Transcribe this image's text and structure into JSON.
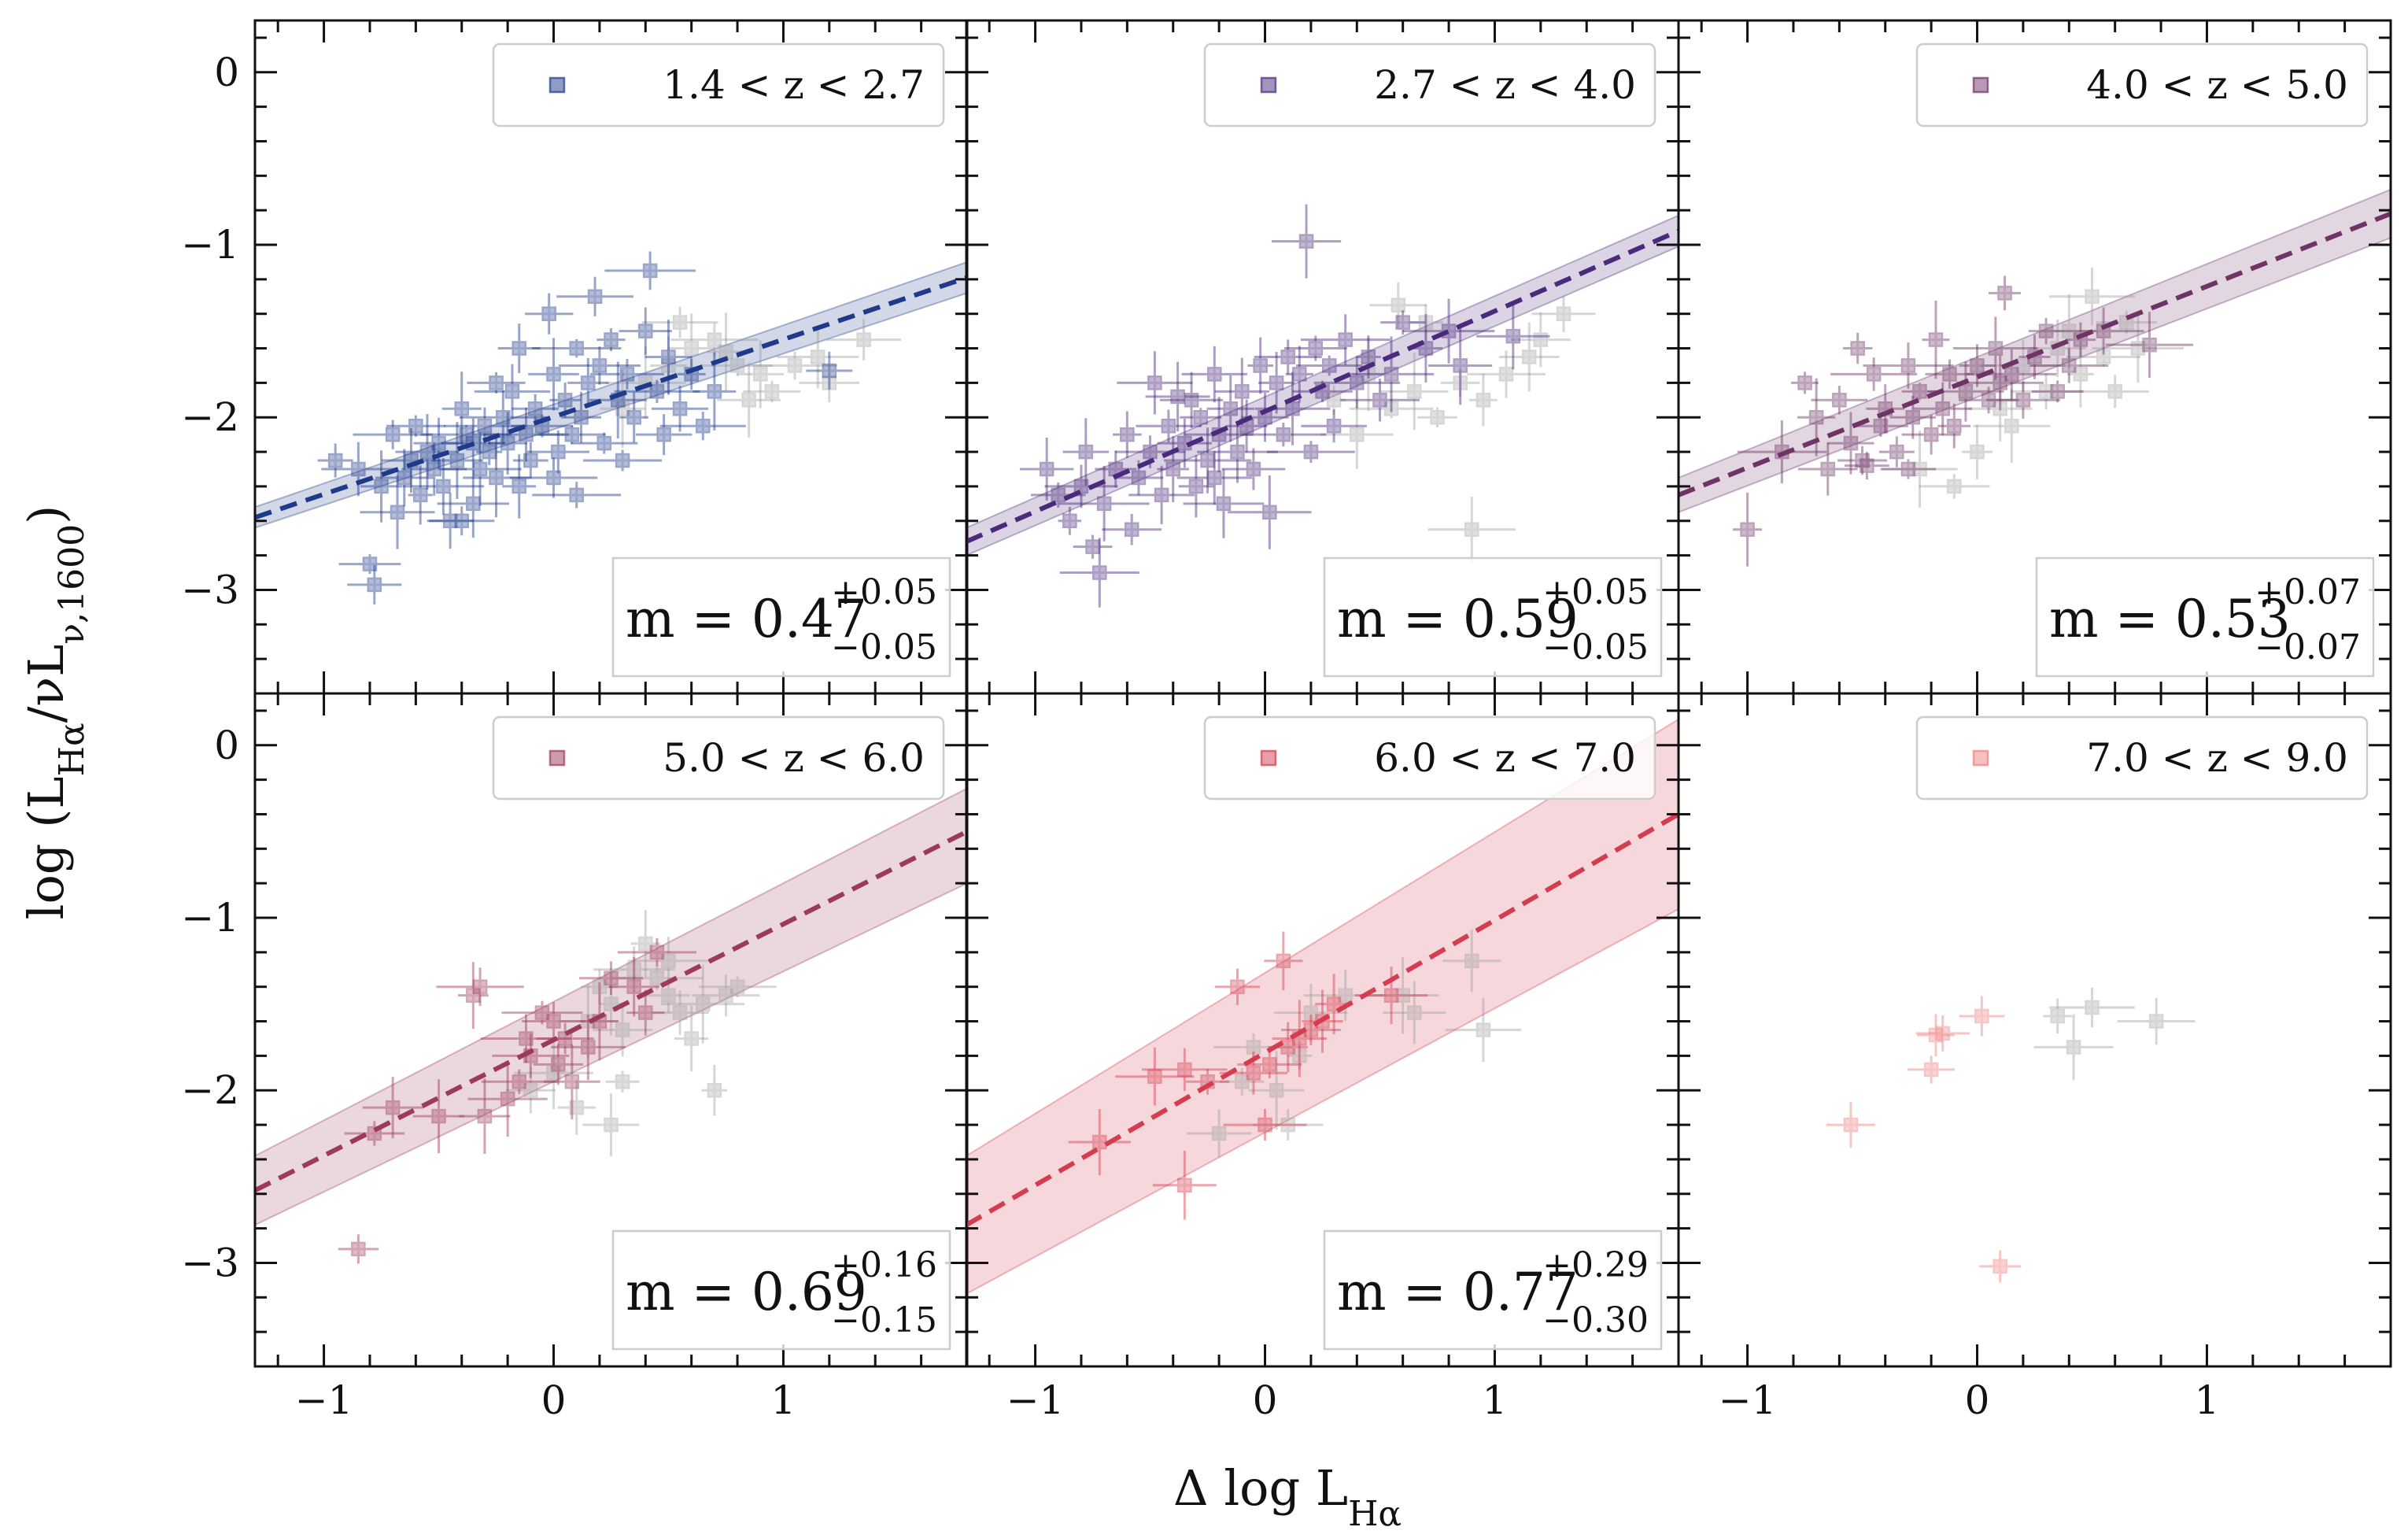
{
  "figure": {
    "xlabel": "Δ log L_Hα",
    "ylabel": "log (L_Hα/νL_ν,1600)"
  },
  "chart_data": [
    {
      "type": "scatter",
      "panel": "1.4 < z < 2.7",
      "color": "#1f3a8a",
      "legend": "1.4 < z < 2.7",
      "slope": "0.47",
      "slope_up": "+0.05",
      "slope_dn": "−0.05",
      "xlim": [
        -1.3,
        1.8
      ],
      "ylim": [
        -3.6,
        0.3
      ],
      "fit": {
        "x": [
          -1.3,
          1.8
        ],
        "y": [
          -2.58,
          -1.19
        ]
      },
      "band": {
        "x": [
          -1.3,
          1.8
        ],
        "upper": [
          -2.52,
          -1.1
        ],
        "lower": [
          -2.64,
          -1.28
        ]
      },
      "points": [
        [
          -0.95,
          -2.25
        ],
        [
          -0.85,
          -2.3
        ],
        [
          -0.8,
          -2.85
        ],
        [
          -0.78,
          -2.97
        ],
        [
          -0.75,
          -2.4
        ],
        [
          -0.7,
          -2.1
        ],
        [
          -0.68,
          -2.55
        ],
        [
          -0.65,
          -2.35
        ],
        [
          -0.62,
          -2.25
        ],
        [
          -0.6,
          -2.05
        ],
        [
          -0.58,
          -2.45
        ],
        [
          -0.55,
          -2.2
        ],
        [
          -0.52,
          -2.3
        ],
        [
          -0.5,
          -2.15
        ],
        [
          -0.48,
          -2.4
        ],
        [
          -0.45,
          -2.6
        ],
        [
          -0.42,
          -2.25
        ],
        [
          -0.4,
          -1.95
        ],
        [
          -0.38,
          -2.1
        ],
        [
          -0.35,
          -2.5
        ],
        [
          -0.32,
          -2.3
        ],
        [
          -0.3,
          -2.05
        ],
        [
          -0.28,
          -2.2
        ],
        [
          -0.25,
          -2.35
        ],
        [
          -0.22,
          -2.0
        ],
        [
          -0.2,
          -2.15
        ],
        [
          -0.18,
          -1.85
        ],
        [
          -0.15,
          -2.4
        ],
        [
          -0.12,
          -2.1
        ],
        [
          -0.1,
          -2.25
        ],
        [
          -0.08,
          -1.95
        ],
        [
          -0.05,
          -2.05
        ],
        [
          -0.02,
          -1.4
        ],
        [
          0.0,
          -1.75
        ],
        [
          0.02,
          -2.2
        ],
        [
          0.05,
          -1.9
        ],
        [
          0.08,
          -2.1
        ],
        [
          0.1,
          -1.6
        ],
        [
          0.12,
          -2.0
        ],
        [
          0.15,
          -1.8
        ],
        [
          0.18,
          -1.3
        ],
        [
          0.2,
          -1.7
        ],
        [
          0.22,
          -2.15
        ],
        [
          0.25,
          -1.55
        ],
        [
          0.28,
          -1.9
        ],
        [
          0.3,
          -2.25
        ],
        [
          0.32,
          -1.75
        ],
        [
          0.35,
          -2.0
        ],
        [
          0.4,
          -1.5
        ],
        [
          0.42,
          -1.15
        ],
        [
          0.45,
          -1.85
        ],
        [
          0.48,
          -2.1
        ],
        [
          0.5,
          -1.65
        ],
        [
          0.55,
          -1.95
        ],
        [
          0.6,
          -1.75
        ],
        [
          0.65,
          -2.05
        ],
        [
          0.7,
          -1.85
        ],
        [
          1.2,
          -1.73
        ],
        [
          -0.4,
          -2.6
        ],
        [
          -0.35,
          -2.15
        ],
        [
          -0.25,
          -1.8
        ],
        [
          -0.15,
          -1.6
        ],
        [
          0.0,
          -2.35
        ],
        [
          0.1,
          -2.45
        ]
      ],
      "grey_points": [
        [
          0.3,
          -1.95
        ],
        [
          0.4,
          -1.8
        ],
        [
          0.5,
          -1.7
        ],
        [
          0.6,
          -1.6
        ],
        [
          0.7,
          -1.55
        ],
        [
          0.75,
          -1.62
        ],
        [
          0.8,
          -1.7
        ],
        [
          0.85,
          -1.9
        ],
        [
          0.95,
          -1.85
        ],
        [
          1.05,
          -1.7
        ],
        [
          1.15,
          -1.65
        ],
        [
          1.2,
          -1.8
        ],
        [
          1.35,
          -1.55
        ],
        [
          0.9,
          -1.75
        ],
        [
          0.55,
          -1.45
        ]
      ]
    },
    {
      "type": "scatter",
      "panel": "2.7 < z < 4.0",
      "color": "#4b2a7b",
      "legend": "2.7 < z < 4.0",
      "slope": "0.59",
      "slope_up": "+0.05",
      "slope_dn": "−0.05",
      "xlim": [
        -1.3,
        1.8
      ],
      "ylim": [
        -3.6,
        0.3
      ],
      "fit": {
        "x": [
          -1.3,
          1.8
        ],
        "y": [
          -2.72,
          -0.92
        ]
      },
      "band": {
        "x": [
          -1.3,
          1.8
        ],
        "upper": [
          -2.64,
          -0.83
        ],
        "lower": [
          -2.8,
          -1.01
        ]
      },
      "points": [
        [
          -0.95,
          -2.3
        ],
        [
          -0.9,
          -2.45
        ],
        [
          -0.85,
          -2.6
        ],
        [
          -0.8,
          -2.4
        ],
        [
          -0.78,
          -2.2
        ],
        [
          -0.75,
          -2.75
        ],
        [
          -0.72,
          -2.9
        ],
        [
          -0.7,
          -2.5
        ],
        [
          -0.65,
          -2.3
        ],
        [
          -0.6,
          -2.1
        ],
        [
          -0.58,
          -2.65
        ],
        [
          -0.55,
          -2.35
        ],
        [
          -0.5,
          -2.2
        ],
        [
          -0.48,
          -1.8
        ],
        [
          -0.45,
          -2.45
        ],
        [
          -0.42,
          -2.05
        ],
        [
          -0.4,
          -2.3
        ],
        [
          -0.35,
          -2.15
        ],
        [
          -0.32,
          -1.9
        ],
        [
          -0.3,
          -2.4
        ],
        [
          -0.28,
          -2.0
        ],
        [
          -0.25,
          -2.25
        ],
        [
          -0.22,
          -1.75
        ],
        [
          -0.2,
          -2.1
        ],
        [
          -0.18,
          -2.5
        ],
        [
          -0.15,
          -1.95
        ],
        [
          -0.12,
          -2.2
        ],
        [
          -0.1,
          -1.85
        ],
        [
          -0.08,
          -2.05
        ],
        [
          -0.05,
          -2.3
        ],
        [
          -0.02,
          -1.7
        ],
        [
          0.0,
          -2.0
        ],
        [
          0.02,
          -2.55
        ],
        [
          0.05,
          -1.8
        ],
        [
          0.08,
          -2.1
        ],
        [
          0.1,
          -1.65
        ],
        [
          0.12,
          -1.95
        ],
        [
          0.15,
          -1.75
        ],
        [
          0.18,
          -0.98
        ],
        [
          0.2,
          -2.2
        ],
        [
          0.22,
          -1.6
        ],
        [
          0.25,
          -1.85
        ],
        [
          0.28,
          -1.7
        ],
        [
          0.3,
          -2.05
        ],
        [
          0.35,
          -1.55
        ],
        [
          0.4,
          -1.8
        ],
        [
          0.45,
          -1.65
        ],
        [
          0.5,
          -1.9
        ],
        [
          0.55,
          -1.75
        ],
        [
          0.6,
          -1.45
        ],
        [
          0.7,
          -1.6
        ],
        [
          0.8,
          -1.5
        ],
        [
          0.85,
          -1.7
        ],
        [
          1.08,
          -1.53
        ],
        [
          -0.38,
          -1.88
        ],
        [
          -0.22,
          -2.35
        ]
      ],
      "grey_points": [
        [
          0.3,
          -1.9
        ],
        [
          0.45,
          -1.75
        ],
        [
          0.55,
          -1.95
        ],
        [
          0.65,
          -1.85
        ],
        [
          0.75,
          -2.0
        ],
        [
          0.85,
          -1.8
        ],
        [
          0.95,
          -1.9
        ],
        [
          1.05,
          -1.75
        ],
        [
          1.15,
          -1.65
        ],
        [
          0.58,
          -1.35
        ],
        [
          0.7,
          -1.45
        ],
        [
          0.9,
          -2.65
        ],
        [
          1.2,
          -1.55
        ],
        [
          1.3,
          -1.4
        ],
        [
          0.4,
          -2.1
        ]
      ]
    },
    {
      "type": "scatter",
      "panel": "4.0 < z < 5.0",
      "color": "#6e3466",
      "legend": "4.0 < z < 5.0",
      "slope": "0.53",
      "slope_up": "+0.07",
      "slope_dn": "−0.07",
      "xlim": [
        -1.3,
        1.8
      ],
      "ylim": [
        -3.6,
        0.3
      ],
      "fit": {
        "x": [
          -1.3,
          1.8
        ],
        "y": [
          -2.45,
          -0.82
        ]
      },
      "band": {
        "x": [
          -1.3,
          1.8
        ],
        "upper": [
          -2.35,
          -0.68
        ],
        "lower": [
          -2.55,
          -0.96
        ]
      },
      "points": [
        [
          -1.0,
          -2.65
        ],
        [
          -0.85,
          -2.2
        ],
        [
          -0.75,
          -1.8
        ],
        [
          -0.7,
          -2.0
        ],
        [
          -0.65,
          -2.3
        ],
        [
          -0.6,
          -1.9
        ],
        [
          -0.55,
          -2.15
        ],
        [
          -0.52,
          -1.6
        ],
        [
          -0.5,
          -2.25
        ],
        [
          -0.45,
          -1.75
        ],
        [
          -0.42,
          -2.05
        ],
        [
          -0.4,
          -1.95
        ],
        [
          -0.35,
          -2.2
        ],
        [
          -0.3,
          -1.7
        ],
        [
          -0.28,
          -2.0
        ],
        [
          -0.25,
          -1.85
        ],
        [
          -0.2,
          -2.1
        ],
        [
          -0.18,
          -1.55
        ],
        [
          -0.15,
          -1.95
        ],
        [
          -0.12,
          -1.75
        ],
        [
          -0.1,
          -2.05
        ],
        [
          -0.05,
          -1.85
        ],
        [
          0.0,
          -1.7
        ],
        [
          0.05,
          -1.9
        ],
        [
          0.08,
          -1.6
        ],
        [
          0.1,
          -1.8
        ],
        [
          0.12,
          -1.28
        ],
        [
          0.15,
          -1.75
        ],
        [
          0.2,
          -1.9
        ],
        [
          0.25,
          -1.65
        ],
        [
          0.3,
          -1.5
        ],
        [
          0.35,
          -1.85
        ],
        [
          0.4,
          -1.7
        ],
        [
          0.45,
          -1.55
        ],
        [
          0.55,
          -1.5
        ],
        [
          0.75,
          -1.58
        ],
        [
          -0.48,
          -2.28
        ],
        [
          -0.3,
          -2.3
        ]
      ],
      "grey_points": [
        [
          -0.25,
          -2.3
        ],
        [
          -0.1,
          -2.4
        ],
        [
          0.0,
          -2.2
        ],
        [
          0.1,
          -1.95
        ],
        [
          0.2,
          -1.7
        ],
        [
          0.3,
          -1.85
        ],
        [
          0.35,
          -1.6
        ],
        [
          0.4,
          -1.5
        ],
        [
          0.45,
          -1.75
        ],
        [
          0.5,
          -1.3
        ],
        [
          0.55,
          -1.65
        ],
        [
          0.6,
          -1.85
        ],
        [
          0.65,
          -1.45
        ],
        [
          0.7,
          -1.6
        ],
        [
          0.15,
          -2.05
        ]
      ]
    },
    {
      "type": "scatter",
      "panel": "5.0 < z < 6.0",
      "color": "#9c3a5a",
      "legend": "5.0 < z < 6.0",
      "slope": "0.69",
      "slope_up": "+0.16",
      "slope_dn": "−0.15",
      "xlim": [
        -1.3,
        1.8
      ],
      "ylim": [
        -3.6,
        0.3
      ],
      "fit": {
        "x": [
          -1.3,
          1.8
        ],
        "y": [
          -2.58,
          -0.5
        ]
      },
      "band": {
        "x": [
          -1.3,
          1.8
        ],
        "upper": [
          -2.38,
          -0.25
        ],
        "lower": [
          -2.78,
          -0.8
        ]
      },
      "points": [
        [
          -0.85,
          -2.92
        ],
        [
          -0.78,
          -2.25
        ],
        [
          -0.7,
          -2.1
        ],
        [
          -0.5,
          -2.15
        ],
        [
          -0.3,
          -2.15
        ],
        [
          -0.32,
          -1.4
        ],
        [
          -0.35,
          -1.45
        ],
        [
          -0.2,
          -2.05
        ],
        [
          -0.15,
          -1.95
        ],
        [
          -0.12,
          -1.7
        ],
        [
          -0.1,
          -1.8
        ],
        [
          -0.05,
          -1.55
        ],
        [
          0.0,
          -1.6
        ],
        [
          0.02,
          -1.85
        ],
        [
          0.05,
          -1.7
        ],
        [
          0.08,
          -1.95
        ],
        [
          0.15,
          -1.75
        ],
        [
          0.2,
          -1.6
        ],
        [
          0.25,
          -1.35
        ],
        [
          0.35,
          -1.4
        ],
        [
          0.4,
          -1.55
        ],
        [
          0.45,
          -1.2
        ]
      ],
      "grey_points": [
        [
          -0.1,
          -2.0
        ],
        [
          0.0,
          -1.9
        ],
        [
          0.1,
          -2.1
        ],
        [
          0.15,
          -1.6
        ],
        [
          0.2,
          -1.4
        ],
        [
          0.25,
          -1.5
        ],
        [
          0.3,
          -1.65
        ],
        [
          0.35,
          -1.3
        ],
        [
          0.4,
          -1.15
        ],
        [
          0.45,
          -1.35
        ],
        [
          0.5,
          -1.45
        ],
        [
          0.55,
          -1.55
        ],
        [
          0.6,
          -1.7
        ],
        [
          0.65,
          -1.5
        ],
        [
          0.7,
          -2.0
        ],
        [
          0.75,
          -1.45
        ],
        [
          0.8,
          -1.4
        ],
        [
          0.25,
          -2.2
        ],
        [
          0.3,
          -1.95
        ],
        [
          0.5,
          -1.25
        ]
      ]
    },
    {
      "type": "scatter",
      "panel": "6.0 < z < 7.0",
      "color": "#d43c50",
      "legend": "6.0 < z < 7.0",
      "slope": "0.77",
      "slope_up": "+0.29",
      "slope_dn": "−0.30",
      "xlim": [
        -1.3,
        1.8
      ],
      "ylim": [
        -3.6,
        0.3
      ],
      "fit": {
        "x": [
          -1.3,
          1.8
        ],
        "y": [
          -2.78,
          -0.4
        ]
      },
      "band": {
        "x": [
          -1.3,
          1.8
        ],
        "upper": [
          -2.38,
          0.15
        ],
        "lower": [
          -3.18,
          -0.95
        ]
      },
      "points": [
        [
          -0.72,
          -2.3
        ],
        [
          -0.48,
          -1.92
        ],
        [
          -0.35,
          -1.88
        ],
        [
          -0.35,
          -2.55
        ],
        [
          -0.25,
          -1.95
        ],
        [
          -0.12,
          -1.4
        ],
        [
          -0.05,
          -1.9
        ],
        [
          0.0,
          -2.2
        ],
        [
          0.02,
          -1.85
        ],
        [
          0.08,
          -1.25
        ],
        [
          0.1,
          -1.75
        ],
        [
          0.15,
          -1.7
        ],
        [
          0.2,
          -1.65
        ],
        [
          0.25,
          -1.6
        ],
        [
          0.55,
          -1.45
        ],
        [
          0.3,
          -1.5
        ]
      ],
      "grey_points": [
        [
          -0.2,
          -2.25
        ],
        [
          -0.1,
          -1.95
        ],
        [
          -0.05,
          -1.75
        ],
        [
          0.05,
          -2.0
        ],
        [
          0.15,
          -1.8
        ],
        [
          0.2,
          -1.55
        ],
        [
          0.35,
          -1.45
        ],
        [
          0.6,
          -1.45
        ],
        [
          0.65,
          -1.55
        ],
        [
          0.9,
          -1.25
        ],
        [
          0.95,
          -1.65
        ],
        [
          0.1,
          -2.2
        ]
      ]
    },
    {
      "type": "scatter",
      "panel": "7.0 < z < 9.0",
      "color": "#f08080",
      "legend": "7.0 < z < 9.0",
      "xlim": [
        -1.3,
        1.8
      ],
      "ylim": [
        -3.6,
        0.3
      ],
      "points": [
        [
          -0.55,
          -2.2
        ],
        [
          -0.2,
          -1.88
        ],
        [
          -0.18,
          -1.68
        ],
        [
          -0.15,
          -1.67
        ],
        [
          0.02,
          -1.57
        ],
        [
          0.1,
          -3.02
        ]
      ],
      "grey_points": [
        [
          0.35,
          -1.57
        ],
        [
          0.42,
          -1.75
        ],
        [
          0.5,
          -1.52
        ],
        [
          0.78,
          -1.6
        ]
      ]
    }
  ]
}
